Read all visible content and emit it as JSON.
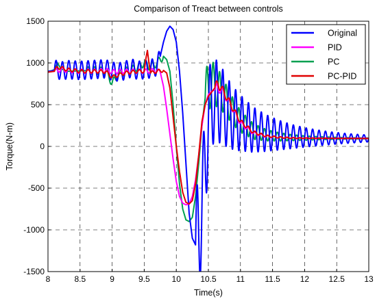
{
  "chart_data": {
    "type": "line",
    "title": "Comparison of Treact between controls",
    "xlabel": "Time(s)",
    "ylabel": "Torque(N-m)",
    "xlim": [
      8,
      13
    ],
    "ylim": [
      -1500,
      1500
    ],
    "xticks": [
      8,
      8.5,
      9,
      9.5,
      10,
      10.5,
      11,
      11.5,
      12,
      12.5,
      13
    ],
    "xtick_labels": [
      "8",
      "8.5",
      "9",
      "9.5",
      "10",
      "10.5",
      "11",
      "11.5",
      "12",
      "12.5",
      "13"
    ],
    "yticks": [
      -1500,
      -1000,
      -500,
      0,
      500,
      1000,
      1500
    ],
    "ytick_labels": [
      "-1500",
      "-1000",
      "-500",
      "0",
      "500",
      "1000",
      "1500"
    ],
    "grid": true,
    "legend_position": "top-right",
    "series": [
      {
        "name": "Original",
        "color": "#0000ff",
        "x": [
          8.0,
          8.1,
          8.15,
          8.2,
          8.3,
          8.5,
          8.7,
          8.9,
          9.0,
          9.1,
          9.2,
          9.3,
          9.4,
          9.5,
          9.6,
          9.7,
          9.75,
          9.8,
          9.85,
          9.9,
          9.95,
          10.0,
          10.05,
          10.1,
          10.15,
          10.2,
          10.25,
          10.3,
          10.35,
          10.4,
          10.45,
          10.5,
          10.55,
          10.6,
          10.7,
          10.8,
          10.9,
          11.0,
          11.2,
          11.4,
          11.6,
          11.8,
          12.0,
          12.2,
          12.4,
          12.6,
          12.8,
          13.0
        ],
        "y": [
          900,
          910,
          930,
          900,
          920,
          910,
          920,
          930,
          900,
          890,
          910,
          940,
          910,
          920,
          930,
          960,
          1080,
          1250,
          1380,
          1440,
          1400,
          1250,
          900,
          400,
          -200,
          -800,
          -1100,
          -1180,
          -1100,
          -700,
          -200,
          300,
          550,
          550,
          500,
          400,
          330,
          280,
          200,
          160,
          135,
          118,
          108,
          102,
          98,
          96,
          95,
          95
        ],
        "oscillation": {
          "amplitude": 110,
          "period": 0.1,
          "start": 8.1,
          "end": 9.75,
          "decay_start": 10.3,
          "decay_amplitude": 700,
          "decay_rate": 1.05
        }
      },
      {
        "name": "PID",
        "color": "#ff00ff",
        "x": [
          8.0,
          8.1,
          8.2,
          8.3,
          8.5,
          8.7,
          8.9,
          9.0,
          9.2,
          9.4,
          9.5,
          9.6,
          9.7,
          9.75,
          9.8,
          9.85,
          9.9,
          9.95,
          10.0,
          10.05,
          10.1,
          10.15,
          10.2,
          10.25,
          10.3,
          10.35,
          10.4,
          10.45,
          10.5,
          10.55,
          10.6,
          10.65,
          10.7,
          10.8,
          10.9,
          11.0,
          11.2,
          11.4,
          11.6,
          11.8,
          12.0,
          12.5,
          13.0
        ],
        "y": [
          890,
          900,
          920,
          910,
          900,
          900,
          910,
          895,
          900,
          900,
          900,
          905,
          910,
          890,
          720,
          450,
          150,
          -150,
          -420,
          -600,
          -680,
          -700,
          -690,
          -600,
          -400,
          -100,
          250,
          500,
          620,
          660,
          680,
          700,
          680,
          560,
          420,
          280,
          160,
          120,
          108,
          102,
          100,
          98,
          97
        ],
        "oscillation": {
          "amplitude": 25,
          "period": 0.1,
          "start": 8.1,
          "end": 9.75,
          "decay_start": 10.6,
          "decay_amplitude": 60,
          "decay_rate": 2.0
        }
      },
      {
        "name": "PC",
        "color": "#00a050",
        "x": [
          8.0,
          8.1,
          8.15,
          8.2,
          8.3,
          8.5,
          8.7,
          8.9,
          9.0,
          9.1,
          9.2,
          9.3,
          9.4,
          9.5,
          9.6,
          9.7,
          9.8,
          9.85,
          9.9,
          9.95,
          10.0,
          10.05,
          10.1,
          10.15,
          10.2,
          10.25,
          10.3,
          10.35,
          10.4,
          10.45,
          10.5,
          10.55,
          10.6,
          10.7,
          10.8,
          10.9,
          11.0,
          11.2,
          11.4,
          11.6,
          11.8,
          12.0,
          12.5,
          13.0
        ],
        "y": [
          890,
          920,
          1000,
          930,
          900,
          905,
          910,
          900,
          760,
          860,
          900,
          920,
          950,
          1000,
          950,
          1000,
          1080,
          1040,
          900,
          500,
          0,
          -450,
          -750,
          -880,
          -900,
          -850,
          -600,
          -200,
          250,
          580,
          720,
          750,
          740,
          650,
          520,
          400,
          300,
          180,
          135,
          115,
          105,
          100,
          97,
          96
        ],
        "oscillation": {
          "amplitude": 45,
          "period": 0.1,
          "start": 8.6,
          "end": 9.8,
          "decay_start": 10.45,
          "decay_amplitude": 320,
          "decay_rate": 1.6
        }
      },
      {
        "name": "PC-PID",
        "color": "#e00000",
        "x": [
          8.0,
          8.1,
          8.15,
          8.2,
          8.3,
          8.5,
          8.7,
          8.9,
          9.0,
          9.2,
          9.4,
          9.5,
          9.55,
          9.6,
          9.7,
          9.8,
          9.85,
          9.9,
          9.95,
          10.0,
          10.05,
          10.1,
          10.15,
          10.2,
          10.25,
          10.3,
          10.35,
          10.4,
          10.45,
          10.5,
          10.55,
          10.6,
          10.65,
          10.7,
          10.8,
          10.9,
          11.0,
          11.2,
          11.4,
          11.6,
          11.8,
          12.0,
          12.5,
          13.0
        ],
        "y": [
          890,
          900,
          950,
          940,
          920,
          900,
          900,
          895,
          830,
          880,
          900,
          900,
          1150,
          880,
          900,
          910,
          880,
          700,
          350,
          0,
          -300,
          -550,
          -670,
          -690,
          -650,
          -450,
          -100,
          300,
          500,
          600,
          650,
          700,
          750,
          700,
          570,
          430,
          300,
          170,
          125,
          108,
          100,
          98,
          96,
          95
        ],
        "oscillation": {
          "amplitude": 20,
          "period": 0.1,
          "start": 8.1,
          "end": 9.8,
          "decay_start": 10.6,
          "decay_amplitude": 60,
          "decay_rate": 2.0
        }
      }
    ]
  }
}
